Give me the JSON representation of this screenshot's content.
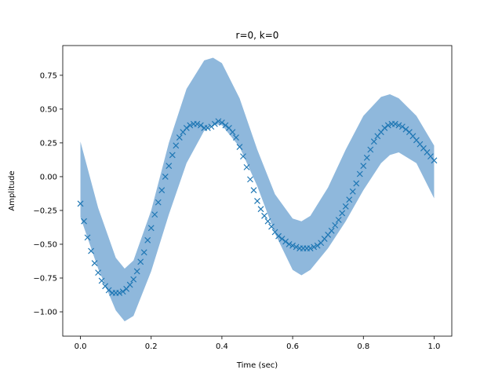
{
  "chart_data": {
    "type": "scatter",
    "title": "r=0, k=0",
    "xlabel": "Time (sec)",
    "ylabel": "Amplitude",
    "xlim": [
      -0.05,
      1.05
    ],
    "ylim": [
      -1.18,
      0.97
    ],
    "xticks": [
      0.0,
      0.2,
      0.4,
      0.6,
      0.8,
      1.0
    ],
    "xtick_labels": [
      "0.0",
      "0.2",
      "0.4",
      "0.6",
      "0.8",
      "1.0"
    ],
    "yticks": [
      -1.0,
      -0.75,
      -0.5,
      -0.25,
      0.0,
      0.25,
      0.5,
      0.75
    ],
    "ytick_labels": [
      "−1.00",
      "−0.75",
      "−0.50",
      "−0.25",
      "0.00",
      "0.25",
      "0.50",
      "0.75"
    ],
    "grid": false,
    "colors": {
      "band": "#8fb8dc",
      "marker": "#1f77b4"
    },
    "band": {
      "x": [
        0.0,
        0.05,
        0.1,
        0.125,
        0.15,
        0.2,
        0.25,
        0.3,
        0.35,
        0.375,
        0.4,
        0.45,
        0.5,
        0.55,
        0.6,
        0.625,
        0.65,
        0.7,
        0.75,
        0.8,
        0.85,
        0.875,
        0.9,
        0.95,
        1.0
      ],
      "upper": [
        0.26,
        -0.23,
        -0.6,
        -0.68,
        -0.62,
        -0.25,
        0.25,
        0.65,
        0.86,
        0.88,
        0.84,
        0.58,
        0.2,
        -0.13,
        -0.31,
        -0.33,
        -0.29,
        -0.08,
        0.2,
        0.45,
        0.59,
        0.61,
        0.58,
        0.45,
        0.23
      ],
      "lower": [
        -0.3,
        -0.68,
        -0.99,
        -1.07,
        -1.03,
        -0.7,
        -0.28,
        0.1,
        0.34,
        0.39,
        0.38,
        0.22,
        -0.07,
        -0.42,
        -0.69,
        -0.73,
        -0.69,
        -0.53,
        -0.33,
        -0.1,
        0.1,
        0.16,
        0.18,
        0.1,
        -0.16
      ]
    },
    "series": [
      {
        "marker": "x",
        "x": [
          0.0,
          0.01,
          0.02,
          0.03,
          0.04,
          0.05,
          0.06,
          0.07,
          0.08,
          0.09,
          0.1,
          0.11,
          0.12,
          0.13,
          0.14,
          0.15,
          0.16,
          0.17,
          0.18,
          0.19,
          0.2,
          0.21,
          0.22,
          0.23,
          0.24,
          0.25,
          0.26,
          0.27,
          0.28,
          0.29,
          0.3,
          0.31,
          0.32,
          0.33,
          0.34,
          0.35,
          0.36,
          0.37,
          0.38,
          0.39,
          0.4,
          0.41,
          0.42,
          0.43,
          0.44,
          0.45,
          0.46,
          0.47,
          0.48,
          0.49,
          0.5,
          0.51,
          0.52,
          0.53,
          0.54,
          0.55,
          0.56,
          0.57,
          0.58,
          0.59,
          0.6,
          0.61,
          0.62,
          0.63,
          0.64,
          0.65,
          0.66,
          0.67,
          0.68,
          0.69,
          0.7,
          0.71,
          0.72,
          0.73,
          0.74,
          0.75,
          0.76,
          0.77,
          0.78,
          0.79,
          0.8,
          0.81,
          0.82,
          0.83,
          0.84,
          0.85,
          0.86,
          0.87,
          0.88,
          0.89,
          0.9,
          0.91,
          0.92,
          0.93,
          0.94,
          0.95,
          0.96,
          0.97,
          0.98,
          0.99,
          1.0
        ],
        "y": [
          -0.2,
          -0.33,
          -0.45,
          -0.55,
          -0.64,
          -0.71,
          -0.77,
          -0.81,
          -0.84,
          -0.86,
          -0.86,
          -0.86,
          -0.85,
          -0.83,
          -0.8,
          -0.76,
          -0.7,
          -0.63,
          -0.56,
          -0.47,
          -0.38,
          -0.28,
          -0.19,
          -0.1,
          0.0,
          0.08,
          0.16,
          0.23,
          0.29,
          0.33,
          0.36,
          0.38,
          0.39,
          0.39,
          0.38,
          0.36,
          0.36,
          0.37,
          0.39,
          0.41,
          0.4,
          0.38,
          0.36,
          0.33,
          0.29,
          0.22,
          0.15,
          0.07,
          -0.02,
          -0.1,
          -0.18,
          -0.24,
          -0.29,
          -0.33,
          -0.37,
          -0.41,
          -0.44,
          -0.46,
          -0.48,
          -0.5,
          -0.51,
          -0.52,
          -0.53,
          -0.53,
          -0.53,
          -0.53,
          -0.52,
          -0.51,
          -0.49,
          -0.46,
          -0.43,
          -0.4,
          -0.36,
          -0.32,
          -0.27,
          -0.22,
          -0.17,
          -0.11,
          -0.05,
          0.02,
          0.08,
          0.14,
          0.2,
          0.26,
          0.3,
          0.33,
          0.36,
          0.38,
          0.39,
          0.39,
          0.38,
          0.37,
          0.35,
          0.33,
          0.3,
          0.27,
          0.24,
          0.21,
          0.18,
          0.15,
          0.12
        ]
      }
    ]
  }
}
